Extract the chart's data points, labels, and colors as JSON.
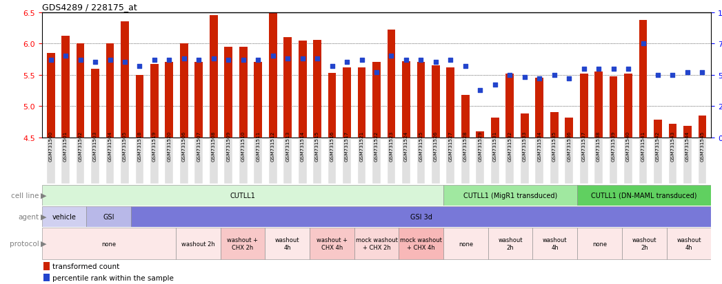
{
  "title": "GDS4289 / 228175_at",
  "samples": [
    "GSM731500",
    "GSM731501",
    "GSM731502",
    "GSM731503",
    "GSM731504",
    "GSM731505",
    "GSM731518",
    "GSM731519",
    "GSM731520",
    "GSM731506",
    "GSM731507",
    "GSM731508",
    "GSM731509",
    "GSM731510",
    "GSM731511",
    "GSM731512",
    "GSM731513",
    "GSM731514",
    "GSM731515",
    "GSM731516",
    "GSM731517",
    "GSM731521",
    "GSM731522",
    "GSM731523",
    "GSM731524",
    "GSM731525",
    "GSM731526",
    "GSM731527",
    "GSM731528",
    "GSM731529",
    "GSM731531",
    "GSM731532",
    "GSM731533",
    "GSM731534",
    "GSM731535",
    "GSM731536",
    "GSM731537",
    "GSM731538",
    "GSM731539",
    "GSM731540",
    "GSM731541",
    "GSM731542",
    "GSM731543",
    "GSM731544",
    "GSM731545"
  ],
  "bar_values": [
    5.85,
    6.12,
    6.0,
    5.6,
    6.0,
    6.35,
    5.5,
    5.67,
    5.7,
    6.0,
    5.7,
    6.45,
    5.95,
    5.95,
    5.7,
    6.55,
    6.1,
    6.05,
    6.06,
    5.53,
    5.62,
    5.62,
    5.7,
    6.22,
    5.72,
    5.7,
    5.65,
    5.62,
    5.18,
    4.6,
    4.82,
    5.52,
    4.88,
    5.45,
    4.9,
    4.82,
    5.52,
    5.55,
    5.48,
    5.52,
    6.38,
    4.78,
    4.72,
    4.68,
    4.85
  ],
  "percentile_values": [
    62,
    65,
    62,
    60,
    62,
    60,
    57,
    62,
    62,
    63,
    62,
    63,
    62,
    62,
    62,
    65,
    63,
    63,
    63,
    57,
    60,
    62,
    52,
    65,
    62,
    62,
    60,
    62,
    57,
    38,
    42,
    50,
    48,
    47,
    50,
    47,
    55,
    55,
    55,
    55,
    75,
    50,
    50,
    52,
    52
  ],
  "bar_color": "#cc2200",
  "dot_color": "#2244cc",
  "ylim_left": [
    4.5,
    6.5
  ],
  "ylim_right": [
    0,
    100
  ],
  "yticks_left": [
    4.5,
    5.0,
    5.5,
    6.0,
    6.5
  ],
  "yticks_right": [
    0,
    25,
    50,
    75,
    100
  ],
  "cell_line_groups": [
    {
      "label": "CUTLL1",
      "start": 0,
      "end": 27,
      "color": "#d8f5d8"
    },
    {
      "label": "CUTLL1 (MigR1 transduced)",
      "start": 27,
      "end": 36,
      "color": "#a0e8a0"
    },
    {
      "label": "CUTLL1 (DN-MAML transduced)",
      "start": 36,
      "end": 45,
      "color": "#60d060"
    }
  ],
  "agent_groups": [
    {
      "label": "vehicle",
      "start": 0,
      "end": 3,
      "color": "#d0d0f0"
    },
    {
      "label": "GSI",
      "start": 3,
      "end": 6,
      "color": "#b8b8e8"
    },
    {
      "label": "GSI 3d",
      "start": 6,
      "end": 45,
      "color": "#7878d8"
    }
  ],
  "protocol_groups": [
    {
      "label": "none",
      "start": 0,
      "end": 9,
      "color": "#fce8e8"
    },
    {
      "label": "washout 2h",
      "start": 9,
      "end": 12,
      "color": "#fce8e8"
    },
    {
      "label": "washout +\nCHX 2h",
      "start": 12,
      "end": 15,
      "color": "#f8c8c8"
    },
    {
      "label": "washout\n4h",
      "start": 15,
      "end": 18,
      "color": "#fce8e8"
    },
    {
      "label": "washout +\nCHX 4h",
      "start": 18,
      "end": 21,
      "color": "#f8c8c8"
    },
    {
      "label": "mock washout\n+ CHX 2h",
      "start": 21,
      "end": 24,
      "color": "#fad8d8"
    },
    {
      "label": "mock washout\n+ CHX 4h",
      "start": 24,
      "end": 27,
      "color": "#f8b8b8"
    },
    {
      "label": "none",
      "start": 27,
      "end": 30,
      "color": "#fce8e8"
    },
    {
      "label": "washout\n2h",
      "start": 30,
      "end": 33,
      "color": "#fce8e8"
    },
    {
      "label": "washout\n4h",
      "start": 33,
      "end": 36,
      "color": "#fce8e8"
    },
    {
      "label": "none",
      "start": 36,
      "end": 39,
      "color": "#fce8e8"
    },
    {
      "label": "washout\n2h",
      "start": 39,
      "end": 42,
      "color": "#fce8e8"
    },
    {
      "label": "washout\n4h",
      "start": 42,
      "end": 45,
      "color": "#fce8e8"
    }
  ],
  "tick_bg_color": "#e0e0e0",
  "row_label_color": "#808080"
}
